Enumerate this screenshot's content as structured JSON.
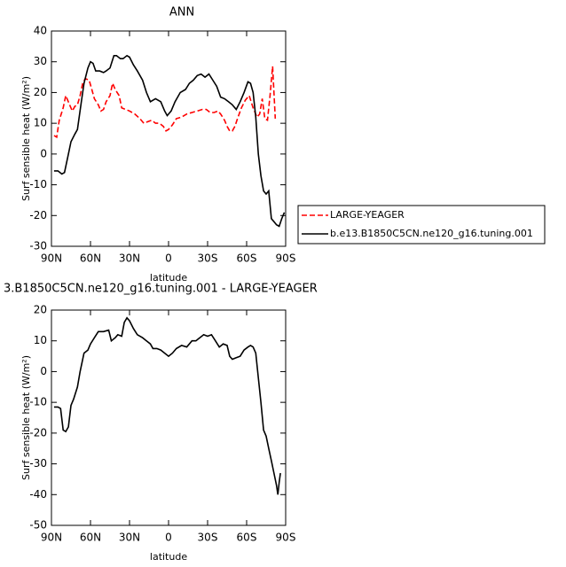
{
  "chart_data": [
    {
      "type": "line",
      "title": "ANN",
      "xlabel": "latitude",
      "ylabel": "Surf sensible heat (W/m²)",
      "xlim": [
        90,
        -90
      ],
      "xticks": [
        {
          "value": 90,
          "label": "90N"
        },
        {
          "value": 60,
          "label": "60N"
        },
        {
          "value": 30,
          "label": "30N"
        },
        0,
        {
          "value": -30,
          "label": "30S"
        },
        {
          "value": -60,
          "label": "60S"
        },
        {
          "value": -90,
          "label": "90S"
        }
      ],
      "ylim": [
        -30,
        40
      ],
      "yticks": [
        -30,
        -20,
        -10,
        0,
        10,
        20,
        30,
        40
      ],
      "legend": "right",
      "series": [
        {
          "name": "LARGE-YEAGER",
          "color": "#ff0000",
          "dash": true,
          "x": [
            88,
            86,
            84,
            81,
            79,
            76,
            74,
            72,
            70,
            68,
            66,
            64,
            61,
            59,
            57,
            54,
            52,
            50,
            48,
            45,
            43,
            41,
            38,
            36,
            33,
            30,
            26,
            22,
            19,
            16,
            13,
            10,
            7,
            4,
            2,
            0,
            -3,
            -6,
            -10,
            -14,
            -18,
            -22,
            -26,
            -29,
            -32,
            -35,
            -38,
            -40,
            -43,
            -45,
            -47,
            -49,
            -51,
            -53,
            -56,
            -59,
            -62,
            -65,
            -68,
            -70,
            -72,
            -74,
            -76,
            -78,
            -80,
            -82
          ],
          "values": [
            6,
            5.5,
            11,
            15,
            19,
            16,
            14,
            15.5,
            16,
            19,
            23,
            24.5,
            24,
            21,
            18,
            16,
            14,
            14.5,
            17,
            19,
            23,
            21,
            19,
            15,
            14.5,
            14,
            13,
            11.5,
            10,
            10.5,
            11,
            10,
            10,
            9,
            7.5,
            8,
            9.5,
            11.5,
            12,
            13,
            13.5,
            14,
            14.5,
            14.5,
            13.5,
            13.5,
            14,
            13,
            11,
            9,
            7.5,
            7.5,
            9,
            11.5,
            15,
            17.5,
            19,
            15,
            12,
            13,
            18,
            11.5,
            11,
            19,
            28.5,
            11.5
          ]
        },
        {
          "name": "b.e13.B1850C5CN.ne120_g16.tuning.001",
          "color": "#000000",
          "dash": false,
          "x": [
            88,
            85,
            82,
            80,
            77,
            75,
            72,
            70,
            67,
            65,
            62,
            60,
            58,
            56,
            53,
            50,
            48,
            45,
            42,
            40,
            37,
            35,
            32,
            30,
            27,
            24,
            20,
            17,
            14,
            10,
            6,
            3,
            1,
            -2,
            -5,
            -9,
            -13,
            -16,
            -19,
            -22,
            -25,
            -28,
            -31,
            -34,
            -37,
            -40,
            -43,
            -46,
            -49,
            -52,
            -55,
            -58,
            -61,
            -63,
            -65,
            -67,
            -69,
            -71,
            -73,
            -75,
            -77,
            -79,
            -81,
            -83,
            -85,
            -87,
            -89
          ],
          "values": [
            -5.5,
            -5.5,
            -6.5,
            -6,
            0,
            4,
            6.5,
            8,
            17,
            23,
            28,
            30,
            29.5,
            27,
            27,
            26.5,
            27,
            28,
            32,
            32,
            31,
            31,
            32,
            31.5,
            29,
            27,
            24,
            20,
            17,
            18,
            17,
            14,
            12.5,
            14,
            17,
            20,
            21,
            23,
            24,
            25.5,
            26,
            25,
            26,
            24,
            22,
            18.5,
            18,
            17,
            16,
            14.5,
            17,
            20,
            23.5,
            23,
            20,
            12,
            0,
            -7,
            -12,
            -13,
            -12,
            -21,
            -22,
            -23,
            -23.5,
            -21,
            -19
          ]
        }
      ]
    },
    {
      "type": "line",
      "title": "3.B1850C5CN.ne120_g16.tuning.001 - LARGE-YEAGER",
      "xlabel": "latitude",
      "ylabel": "Surf sensible heat (W/m²)",
      "xlim": [
        90,
        -90
      ],
      "xticks": [
        {
          "value": 90,
          "label": "90N"
        },
        {
          "value": 60,
          "label": "60N"
        },
        {
          "value": 30,
          "label": "30N"
        },
        0,
        {
          "value": -30,
          "label": "30S"
        },
        {
          "value": -60,
          "label": "60S"
        },
        {
          "value": -90,
          "label": "90S"
        }
      ],
      "ylim": [
        -50,
        20
      ],
      "yticks": [
        -50,
        -40,
        -30,
        -20,
        -10,
        0,
        10,
        20
      ],
      "series": [
        {
          "color": "#000000",
          "dash": false,
          "x": [
            88,
            85,
            83,
            81,
            79,
            77,
            75,
            73,
            70,
            68,
            65,
            62,
            60,
            57,
            54,
            50,
            46,
            44,
            41,
            39,
            36,
            34,
            32,
            30,
            27,
            24,
            20,
            17,
            14,
            12,
            9,
            6,
            3,
            0,
            -3,
            -6,
            -10,
            -14,
            -18,
            -21,
            -24,
            -27,
            -30,
            -33,
            -36,
            -39,
            -42,
            -45,
            -47,
            -49,
            -52,
            -55,
            -58,
            -61,
            -63,
            -65,
            -67,
            -69,
            -71,
            -73,
            -75,
            -77,
            -79,
            -81,
            -83,
            -84,
            -85,
            -86
          ],
          "values": [
            -11.5,
            -11.5,
            -12,
            -19,
            -19.5,
            -18,
            -11,
            -9,
            -5,
            0,
            6,
            7,
            9,
            11,
            13,
            13,
            13.5,
            10,
            11,
            12,
            11.5,
            16,
            17.5,
            16.5,
            14,
            12,
            11,
            10,
            9,
            7.5,
            7.5,
            7,
            6,
            5,
            6,
            7.5,
            8.5,
            8,
            10,
            10,
            11,
            12,
            11.5,
            12,
            10,
            8,
            9,
            8.5,
            5,
            4,
            4.5,
            5,
            7,
            8,
            8.5,
            8,
            6,
            -2,
            -10,
            -19,
            -21,
            -25,
            -29,
            -33,
            -37,
            -40,
            -36,
            -33
          ]
        }
      ]
    }
  ]
}
